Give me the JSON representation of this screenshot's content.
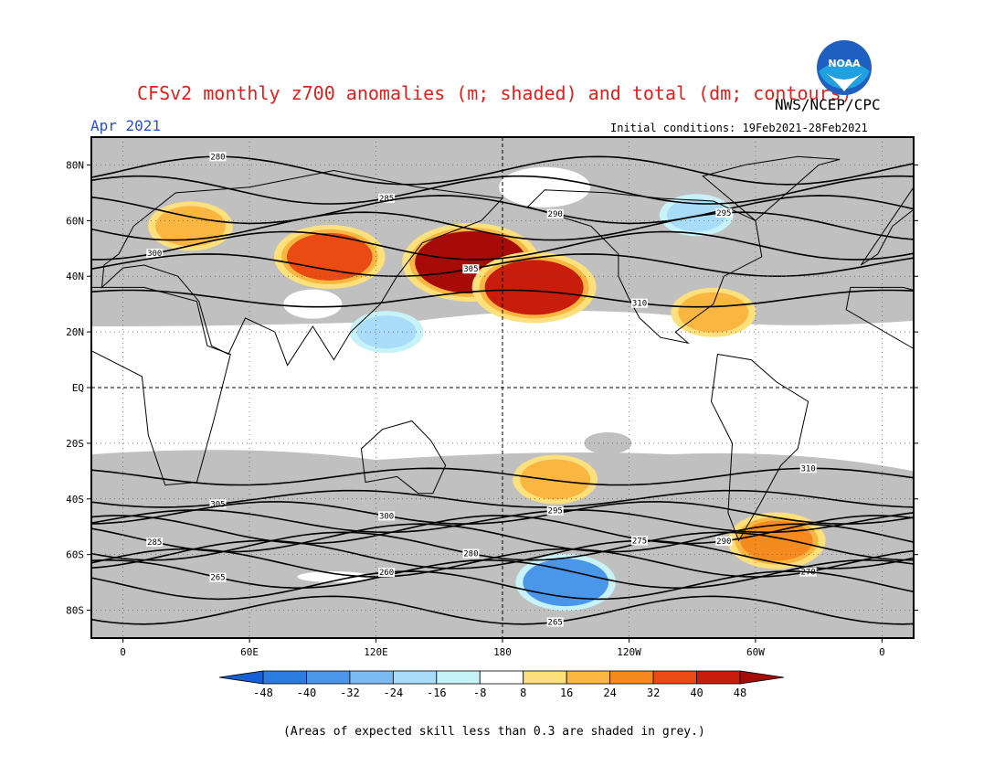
{
  "header": {
    "title": "CFSv2 monthly z700 anomalies (m; shaded) and total (dm; contours)",
    "month": "Apr 2021",
    "agency": "NWS/NCEP/CPC",
    "initial_conditions": "Initial conditions: 19Feb2021-28Feb2021"
  },
  "logo": {
    "text": "NOAA",
    "icon": "noaa-logo-icon"
  },
  "map": {
    "lat_labels": [
      "80N",
      "60N",
      "40N",
      "20N",
      "EQ",
      "20S",
      "40S",
      "60S",
      "80S"
    ],
    "lat_values": [
      80,
      60,
      40,
      20,
      0,
      -20,
      -40,
      -60,
      -80
    ],
    "lon_labels": [
      "0",
      "60E",
      "120E",
      "180",
      "120W",
      "60W",
      "0"
    ],
    "lon_values": [
      0,
      60,
      120,
      180,
      240,
      300,
      360
    ],
    "lat_range": [
      -90,
      90
    ],
    "lon_range": [
      -15,
      375
    ],
    "colors": {
      "grey": "#c0c0c0",
      "contour": "#000000",
      "grid": "#555555"
    },
    "contours": [
      {
        "value": "280",
        "lat": 78
      },
      {
        "value": "285",
        "lat": 71
      },
      {
        "value": "290",
        "lat": 64
      },
      {
        "value": "295",
        "lat": 58
      },
      {
        "value": "300",
        "lat": 51
      },
      {
        "value": "305",
        "lat": 44
      },
      {
        "value": "310",
        "lat": 32
      },
      {
        "value": "310",
        "lat": -32
      },
      {
        "value": "305",
        "lat": -40
      },
      {
        "value": "300",
        "lat": -45
      },
      {
        "value": "295",
        "lat": -48
      },
      {
        "value": "290",
        "lat": -51
      },
      {
        "value": "285",
        "lat": -54
      },
      {
        "value": "280",
        "lat": -57
      },
      {
        "value": "275",
        "lat": -60
      },
      {
        "value": "270",
        "lat": -63
      },
      {
        "value": "265",
        "lat": -67
      },
      {
        "value": "260",
        "lat": -71
      },
      {
        "value": "265",
        "lat": -80
      }
    ],
    "anomalies": [
      {
        "lon": 165,
        "lat": 45,
        "value": 48
      },
      {
        "lon": 195,
        "lat": 36,
        "value": 40
      },
      {
        "lon": 98,
        "lat": 47,
        "value": 32
      },
      {
        "lon": 280,
        "lat": 27,
        "value": 16
      },
      {
        "lon": 32,
        "lat": 58,
        "value": 16
      },
      {
        "lon": 205,
        "lat": -33,
        "value": 16
      },
      {
        "lon": 310,
        "lat": -55,
        "value": 24
      },
      {
        "lon": 125,
        "lat": 20,
        "value": -16
      },
      {
        "lon": 272,
        "lat": 62,
        "value": -16
      },
      {
        "lon": 210,
        "lat": -70,
        "value": -32
      }
    ]
  },
  "colorbar": {
    "labels": [
      "-48",
      "-40",
      "-32",
      "-24",
      "-16",
      "-8",
      "8",
      "16",
      "24",
      "32",
      "40",
      "48"
    ],
    "colors": [
      "#1560d6",
      "#2c7de0",
      "#4a96ea",
      "#7bbaf2",
      "#a8dcf8",
      "#c6f2f8",
      "#ffffff",
      "#fbe07c",
      "#f9b641",
      "#f58b1e",
      "#e94b12",
      "#c81d0c",
      "#a70b08"
    ]
  },
  "footnote": "(Areas of expected skill less than 0.3 are shaded in grey.)"
}
